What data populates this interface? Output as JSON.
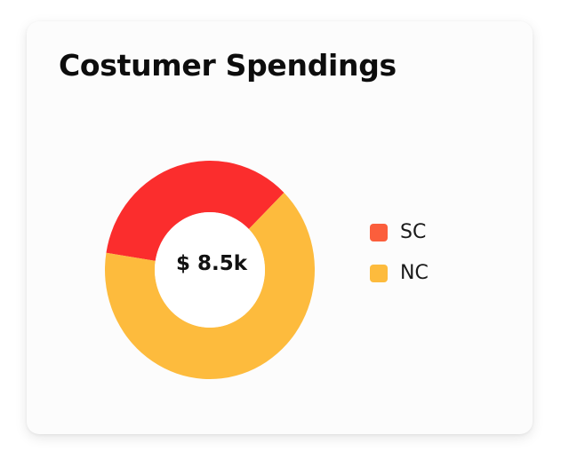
{
  "card": {
    "title": "Costumer Spendings"
  },
  "chart_data": {
    "type": "pie",
    "donut": true,
    "title": "Costumer Spendings",
    "center_label": "$ 8.5k",
    "categories": [
      "SC",
      "NC"
    ],
    "values": [
      35,
      65
    ],
    "colors": [
      "#fb2d2d",
      "#fdbb3d"
    ],
    "legend": {
      "position": "right",
      "items": [
        {
          "label": "SC",
          "color": "#fb5e3c"
        },
        {
          "label": "NC",
          "color": "#fdbb3d"
        }
      ]
    }
  }
}
